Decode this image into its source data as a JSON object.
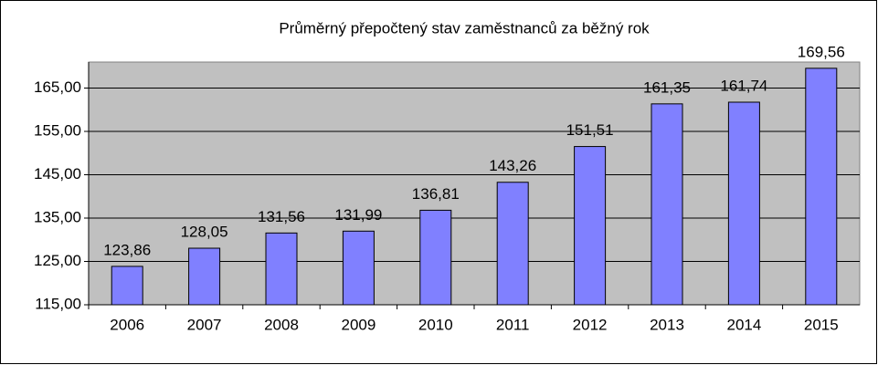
{
  "chart_data": {
    "type": "bar",
    "title": "Průměrný přepočtený stav zaměstnanců za běžný rok",
    "categories": [
      "2006",
      "2007",
      "2008",
      "2009",
      "2010",
      "2011",
      "2012",
      "2013",
      "2014",
      "2015"
    ],
    "values": [
      123.86,
      128.05,
      131.56,
      131.99,
      136.81,
      143.26,
      151.51,
      161.35,
      161.74,
      169.56
    ],
    "value_labels": [
      "123,86",
      "128,05",
      "131,56",
      "131,99",
      "136,81",
      "143,26",
      "151,51",
      "161,35",
      "161,74",
      "169,56"
    ],
    "color": "#8080ff",
    "ylim": [
      115,
      171
    ],
    "yticks": [
      {
        "value": 115,
        "label": "115,00"
      },
      {
        "value": 125,
        "label": "125,00"
      },
      {
        "value": 135,
        "label": "135,00"
      },
      {
        "value": 145,
        "label": "145,00"
      },
      {
        "value": 155,
        "label": "155,00"
      },
      {
        "value": 165,
        "label": "165,00"
      }
    ],
    "grid": true
  }
}
